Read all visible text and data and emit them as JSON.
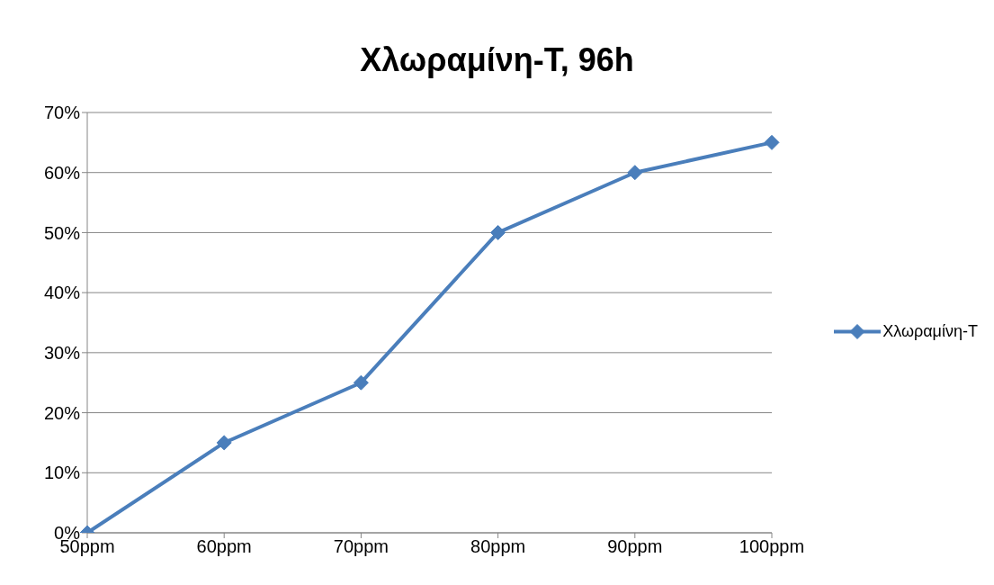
{
  "chart_data": {
    "type": "line",
    "title": "Χλωραμίνη-T, 96h",
    "categories": [
      "50ppm",
      "60ppm",
      "70ppm",
      "80ppm",
      "90ppm",
      "100ppm"
    ],
    "series": [
      {
        "name": "Χλωραμίνη-T",
        "color": "#4a7ebb",
        "values": [
          0,
          15,
          25,
          50,
          60,
          65
        ]
      }
    ],
    "ylim": [
      0,
      70
    ],
    "yticks": [
      {
        "value": 0,
        "label": "0%"
      },
      {
        "value": 10,
        "label": "10%"
      },
      {
        "value": 20,
        "label": "20%"
      },
      {
        "value": 30,
        "label": "30%"
      },
      {
        "value": 40,
        "label": "40%"
      },
      {
        "value": 50,
        "label": "50%"
      },
      {
        "value": 60,
        "label": "60%"
      },
      {
        "value": 70,
        "label": "70%"
      }
    ],
    "grid": "y",
    "legend": "right",
    "marker": "diamond",
    "line_style": "solid"
  }
}
